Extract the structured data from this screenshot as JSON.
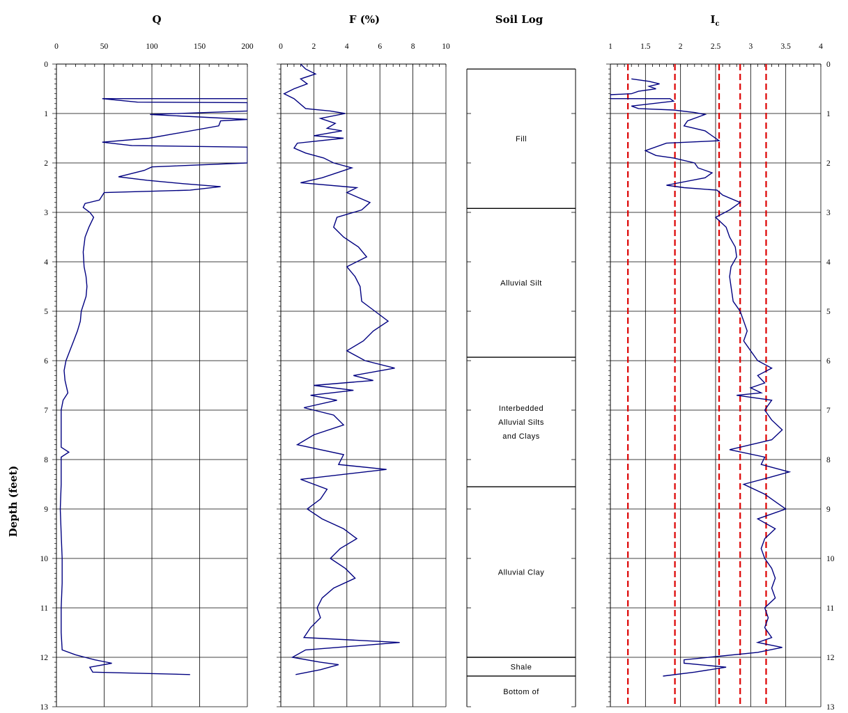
{
  "figure": {
    "ylabel": "Depth (feet)",
    "depth_ticks": [
      "0",
      "1",
      "2",
      "3",
      "4",
      "5",
      "6",
      "7",
      "8",
      "9",
      "10",
      "11",
      "12",
      "13"
    ],
    "colors": {
      "profile": "#000080",
      "reference": "#dd0000",
      "grid": "#000000"
    }
  },
  "chart_data": [
    {
      "type": "line",
      "title": "Q",
      "xlim": [
        0,
        200
      ],
      "ylim": [
        0,
        13
      ],
      "x_ticks": [
        "0",
        "50",
        "100",
        "150",
        "200"
      ],
      "x_tick_values": [
        0,
        50,
        100,
        150,
        200
      ],
      "series": [
        {
          "points": [
            [
              200,
              0.7
            ],
            [
              48,
              0.7
            ],
            [
              85,
              0.77
            ],
            [
              200,
              0.78
            ],
            [
              200,
              0.95
            ],
            [
              98,
              1.02
            ],
            [
              200,
              1.12
            ],
            [
              172,
              1.15
            ],
            [
              170,
              1.25
            ],
            [
              97,
              1.5
            ],
            [
              48,
              1.58
            ],
            [
              79,
              1.65
            ],
            [
              200,
              1.68
            ],
            [
              200,
              2.0
            ],
            [
              100,
              2.08
            ],
            [
              92,
              2.15
            ],
            [
              65,
              2.28
            ],
            [
              95,
              2.35
            ],
            [
              133,
              2.42
            ],
            [
              172,
              2.48
            ],
            [
              140,
              2.55
            ],
            [
              50,
              2.6
            ],
            [
              45,
              2.75
            ],
            [
              30,
              2.82
            ],
            [
              28,
              2.9
            ],
            [
              35,
              3.0
            ],
            [
              39,
              3.1
            ],
            [
              34,
              3.3
            ],
            [
              30,
              3.5
            ],
            [
              28,
              3.8
            ],
            [
              29,
              4.1
            ],
            [
              31,
              4.3
            ],
            [
              32,
              4.5
            ],
            [
              31,
              4.7
            ],
            [
              26,
              5.0
            ],
            [
              25,
              5.2
            ],
            [
              22,
              5.4
            ],
            [
              18,
              5.6
            ],
            [
              14,
              5.8
            ],
            [
              10,
              6.0
            ],
            [
              8,
              6.2
            ],
            [
              9,
              6.4
            ],
            [
              12,
              6.65
            ],
            [
              7,
              6.8
            ],
            [
              5,
              7.0
            ],
            [
              5,
              7.5
            ],
            [
              5,
              7.75
            ],
            [
              13,
              7.85
            ],
            [
              5,
              7.95
            ],
            [
              5,
              8.5
            ],
            [
              4,
              9.0
            ],
            [
              5,
              9.5
            ],
            [
              6,
              10.0
            ],
            [
              6,
              10.5
            ],
            [
              5,
              11.0
            ],
            [
              5,
              11.5
            ],
            [
              6,
              11.85
            ],
            [
              20,
              11.95
            ],
            [
              40,
              12.05
            ],
            [
              58,
              12.12
            ],
            [
              35,
              12.2
            ],
            [
              38,
              12.3
            ],
            [
              140,
              12.35
            ]
          ]
        }
      ]
    },
    {
      "type": "line",
      "title": "F (%)",
      "xlim": [
        0,
        10
      ],
      "ylim": [
        0,
        13
      ],
      "x_ticks": [
        "0",
        "2",
        "4",
        "6",
        "8",
        "10"
      ],
      "x_tick_values": [
        0,
        2,
        4,
        6,
        8,
        10
      ],
      "series": [
        {
          "points": [
            [
              1.2,
              0.0
            ],
            [
              1.5,
              0.1
            ],
            [
              2.1,
              0.2
            ],
            [
              1.2,
              0.3
            ],
            [
              1.6,
              0.4
            ],
            [
              0.8,
              0.5
            ],
            [
              0.2,
              0.6
            ],
            [
              0.8,
              0.7
            ],
            [
              1.5,
              0.9
            ],
            [
              3.0,
              0.95
            ],
            [
              3.9,
              1.0
            ],
            [
              2.4,
              1.1
            ],
            [
              3.3,
              1.2
            ],
            [
              2.8,
              1.3
            ],
            [
              3.7,
              1.35
            ],
            [
              2.0,
              1.45
            ],
            [
              3.8,
              1.5
            ],
            [
              1.0,
              1.6
            ],
            [
              0.8,
              1.7
            ],
            [
              1.5,
              1.8
            ],
            [
              2.6,
              1.9
            ],
            [
              3.2,
              2.0
            ],
            [
              4.3,
              2.1
            ],
            [
              3.4,
              2.2
            ],
            [
              2.5,
              2.3
            ],
            [
              1.2,
              2.4
            ],
            [
              4.6,
              2.5
            ],
            [
              4.0,
              2.6
            ],
            [
              5.4,
              2.8
            ],
            [
              4.9,
              2.95
            ],
            [
              3.4,
              3.1
            ],
            [
              3.2,
              3.3
            ],
            [
              3.8,
              3.5
            ],
            [
              4.7,
              3.7
            ],
            [
              5.2,
              3.9
            ],
            [
              4.0,
              4.1
            ],
            [
              4.5,
              4.3
            ],
            [
              4.8,
              4.5
            ],
            [
              4.9,
              4.8
            ],
            [
              5.7,
              5.0
            ],
            [
              6.5,
              5.2
            ],
            [
              5.6,
              5.4
            ],
            [
              5.0,
              5.6
            ],
            [
              4.0,
              5.8
            ],
            [
              5.1,
              6.0
            ],
            [
              6.9,
              6.15
            ],
            [
              4.4,
              6.3
            ],
            [
              5.6,
              6.4
            ],
            [
              2.0,
              6.5
            ],
            [
              4.4,
              6.6
            ],
            [
              1.8,
              6.7
            ],
            [
              3.4,
              6.8
            ],
            [
              1.4,
              6.95
            ],
            [
              3.2,
              7.1
            ],
            [
              3.8,
              7.3
            ],
            [
              2.0,
              7.5
            ],
            [
              1.0,
              7.7
            ],
            [
              3.8,
              7.9
            ],
            [
              3.5,
              8.1
            ],
            [
              6.4,
              8.2
            ],
            [
              1.2,
              8.4
            ],
            [
              2.8,
              8.6
            ],
            [
              2.4,
              8.8
            ],
            [
              1.6,
              9.0
            ],
            [
              2.5,
              9.2
            ],
            [
              3.8,
              9.4
            ],
            [
              4.6,
              9.6
            ],
            [
              3.6,
              9.8
            ],
            [
              3.0,
              10.0
            ],
            [
              3.9,
              10.2
            ],
            [
              4.5,
              10.4
            ],
            [
              3.2,
              10.6
            ],
            [
              2.5,
              10.8
            ],
            [
              2.2,
              11.0
            ],
            [
              2.4,
              11.2
            ],
            [
              1.8,
              11.4
            ],
            [
              1.4,
              11.6
            ],
            [
              7.2,
              11.7
            ],
            [
              1.5,
              11.85
            ],
            [
              0.7,
              12.0
            ],
            [
              2.4,
              12.1
            ],
            [
              3.5,
              12.15
            ],
            [
              2.4,
              12.25
            ],
            [
              0.9,
              12.35
            ]
          ]
        }
      ]
    },
    {
      "type": "table",
      "title": "Soil Log",
      "ylim": [
        0,
        13
      ],
      "layers": [
        {
          "top": 0.1,
          "bottom": 2.92,
          "label_lines": [
            "Fill"
          ]
        },
        {
          "top": 2.92,
          "bottom": 5.93,
          "label_lines": [
            "Alluvial Silt"
          ]
        },
        {
          "top": 5.93,
          "bottom": 8.55,
          "label_lines": [
            "Interbedded",
            "Alluvial Silts",
            "and Clays"
          ]
        },
        {
          "top": 8.55,
          "bottom": 12.0,
          "label_lines": [
            "Alluvial Clay"
          ]
        },
        {
          "top": 12.0,
          "bottom": 12.38,
          "label_lines": [
            "Shale"
          ]
        },
        {
          "top": 12.38,
          "bottom": 13.0,
          "label_lines": [
            "Bottom of"
          ]
        }
      ]
    },
    {
      "type": "line",
      "title": "Ic",
      "title_main": "I",
      "title_sub": "c",
      "xlim": [
        1,
        4
      ],
      "ylim": [
        0,
        13
      ],
      "x_ticks": [
        "1",
        "1.5",
        "2",
        "2.5",
        "3",
        "3.5",
        "4"
      ],
      "x_tick_values": [
        1,
        1.5,
        2,
        2.5,
        3,
        3.5,
        4
      ],
      "reference_lines": [
        1.25,
        1.92,
        2.55,
        2.85,
        3.22
      ],
      "series": [
        {
          "points": [
            [
              1.3,
              0.3
            ],
            [
              1.55,
              0.35
            ],
            [
              1.7,
              0.4
            ],
            [
              1.55,
              0.45
            ],
            [
              1.65,
              0.5
            ],
            [
              1.4,
              0.55
            ],
            [
              1.3,
              0.6
            ],
            [
              1.0,
              0.62
            ],
            [
              1.0,
              0.7
            ],
            [
              1.85,
              0.7
            ],
            [
              1.9,
              0.75
            ],
            [
              1.3,
              0.85
            ],
            [
              1.4,
              0.9
            ],
            [
              1.9,
              0.93
            ],
            [
              2.2,
              0.98
            ],
            [
              2.35,
              1.02
            ],
            [
              2.1,
              1.15
            ],
            [
              2.05,
              1.25
            ],
            [
              2.2,
              1.3
            ],
            [
              2.35,
              1.35
            ],
            [
              2.55,
              1.55
            ],
            [
              1.8,
              1.6
            ],
            [
              1.5,
              1.75
            ],
            [
              1.65,
              1.85
            ],
            [
              1.9,
              1.9
            ],
            [
              2.2,
              2.0
            ],
            [
              2.25,
              2.1
            ],
            [
              2.45,
              2.2
            ],
            [
              2.35,
              2.3
            ],
            [
              1.8,
              2.45
            ],
            [
              2.05,
              2.5
            ],
            [
              2.52,
              2.55
            ],
            [
              2.6,
              2.65
            ],
            [
              2.85,
              2.8
            ],
            [
              2.7,
              2.95
            ],
            [
              2.5,
              3.1
            ],
            [
              2.65,
              3.3
            ],
            [
              2.7,
              3.5
            ],
            [
              2.78,
              3.7
            ],
            [
              2.8,
              3.9
            ],
            [
              2.72,
              4.1
            ],
            [
              2.7,
              4.3
            ],
            [
              2.72,
              4.5
            ],
            [
              2.75,
              4.8
            ],
            [
              2.85,
              5.0
            ],
            [
              2.9,
              5.2
            ],
            [
              2.95,
              5.4
            ],
            [
              2.9,
              5.6
            ],
            [
              3.0,
              5.8
            ],
            [
              3.1,
              6.0
            ],
            [
              3.3,
              6.15
            ],
            [
              3.1,
              6.3
            ],
            [
              3.2,
              6.45
            ],
            [
              3.0,
              6.55
            ],
            [
              3.15,
              6.65
            ],
            [
              2.8,
              6.7
            ],
            [
              3.3,
              6.8
            ],
            [
              3.2,
              7.0
            ],
            [
              3.3,
              7.2
            ],
            [
              3.45,
              7.4
            ],
            [
              3.3,
              7.6
            ],
            [
              2.7,
              7.8
            ],
            [
              3.2,
              7.95
            ],
            [
              3.15,
              8.1
            ],
            [
              3.55,
              8.25
            ],
            [
              3.3,
              8.35
            ],
            [
              2.9,
              8.5
            ],
            [
              3.2,
              8.7
            ],
            [
              3.35,
              8.85
            ],
            [
              3.5,
              9.0
            ],
            [
              3.1,
              9.2
            ],
            [
              3.35,
              9.4
            ],
            [
              3.2,
              9.6
            ],
            [
              3.15,
              9.8
            ],
            [
              3.2,
              10.0
            ],
            [
              3.3,
              10.2
            ],
            [
              3.35,
              10.4
            ],
            [
              3.3,
              10.6
            ],
            [
              3.35,
              10.8
            ],
            [
              3.2,
              11.0
            ],
            [
              3.25,
              11.2
            ],
            [
              3.2,
              11.4
            ],
            [
              3.3,
              11.6
            ],
            [
              3.1,
              11.7
            ],
            [
              3.45,
              11.8
            ],
            [
              3.1,
              11.9
            ],
            [
              2.05,
              12.05
            ],
            [
              2.05,
              12.12
            ],
            [
              2.65,
              12.2
            ],
            [
              2.2,
              12.3
            ],
            [
              1.75,
              12.38
            ]
          ]
        }
      ]
    }
  ]
}
